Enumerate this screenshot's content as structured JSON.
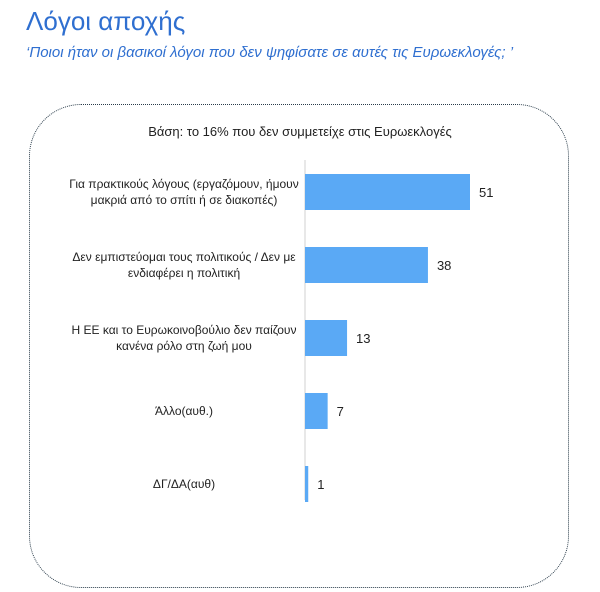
{
  "page": {
    "title": "Λόγοι αποχής",
    "subtitle": "‘Ποιοι ήταν οι βασικοί λόγοι που δεν ψηφίσατε σε αυτές τις Ευρωεκλογές; ’",
    "base_note": "Βάση: το 16% που δεν συμμετείχε στις Ευρωεκλογές"
  },
  "colors": {
    "title": "#2f6fd0",
    "bar": "#5aa9f5",
    "frame": "#2a3c4a"
  },
  "chart_data": {
    "type": "bar",
    "orientation": "horizontal",
    "categories": [
      [
        "Για πρακτικούς λόγους (εργαζόμουν, ήμουν",
        "μακριά από το σπίτι ή σε διακοπές)"
      ],
      [
        "Δεν εμπιστεύομαι τους πολιτικούς / Δεν με",
        "ενδιαφέρει η πολιτική"
      ],
      [
        "Η ΕΕ και το Ευρωκοινοβούλιο δεν παίζουν",
        "κανένα ρόλο στη ζωή μου"
      ],
      [
        "Άλλο(αυθ.)"
      ],
      [
        "ΔΓ/ΔΑ(αυθ)"
      ]
    ],
    "values": [
      51,
      38,
      13,
      7,
      1
    ],
    "xlim": [
      0,
      51
    ]
  }
}
